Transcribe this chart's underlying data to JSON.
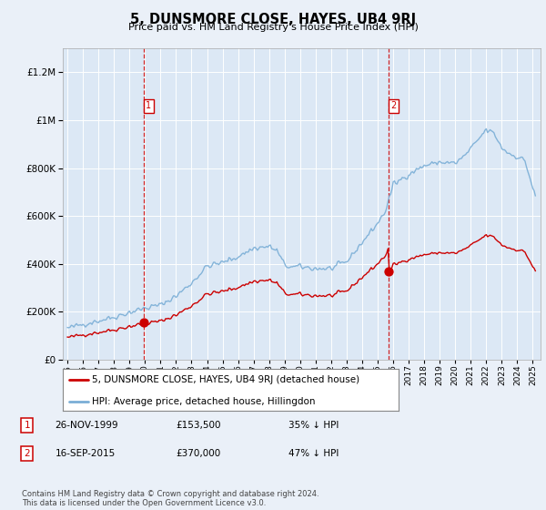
{
  "title": "5, DUNSMORE CLOSE, HAYES, UB4 9RJ",
  "subtitle": "Price paid vs. HM Land Registry's House Price Index (HPI)",
  "hpi_label": "HPI: Average price, detached house, Hillingdon",
  "property_label": "5, DUNSMORE CLOSE, HAYES, UB4 9RJ (detached house)",
  "footer": "Contains HM Land Registry data © Crown copyright and database right 2024.\nThis data is licensed under the Open Government Licence v3.0.",
  "sale1": {
    "label": "1",
    "date": "26-NOV-1999",
    "price": "£153,500",
    "hpi_diff": "35% ↓ HPI"
  },
  "sale2": {
    "label": "2",
    "date": "16-SEP-2015",
    "price": "£370,000",
    "hpi_diff": "47% ↓ HPI"
  },
  "sale1_year": 1999.9,
  "sale1_price": 153500,
  "sale2_year": 2015.71,
  "sale2_price": 370000,
  "background_color": "#eaf0f8",
  "plot_bg_color": "#dce8f5",
  "red_color": "#cc0000",
  "blue_color": "#7aaed6",
  "ylim": [
    0,
    1300000
  ],
  "yticks": [
    0,
    200000,
    400000,
    600000,
    800000,
    1000000,
    1200000
  ],
  "xlim_start": 1994.7,
  "xlim_end": 2025.5
}
